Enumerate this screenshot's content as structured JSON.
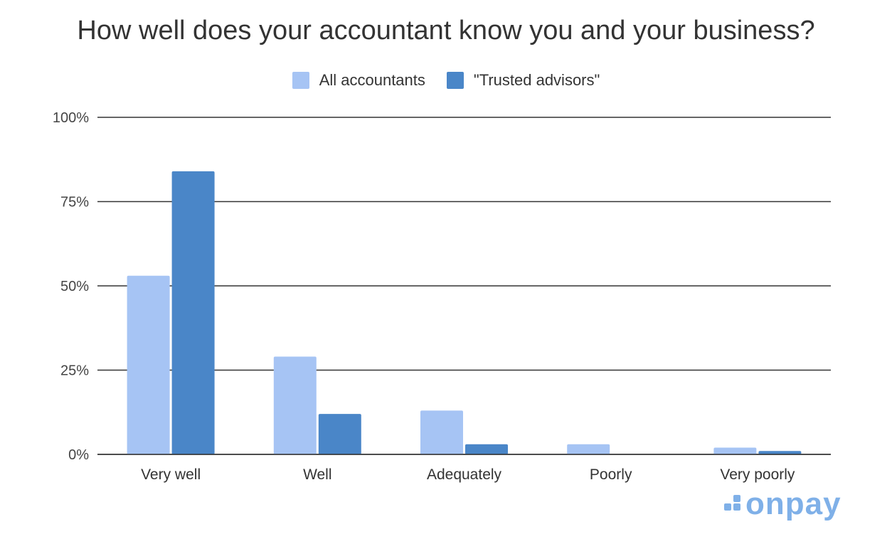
{
  "chart_data": {
    "type": "bar",
    "title": "How well does your accountant know you and your business?",
    "categories": [
      "Very well",
      "Well",
      "Adequately",
      "Poorly",
      "Very poorly"
    ],
    "series": [
      {
        "name": "All accountants",
        "color": "#a6c4f4",
        "values": [
          53,
          29,
          13,
          3,
          2
        ]
      },
      {
        "name": "\"Trusted advisors\"",
        "color": "#4a86c8",
        "values": [
          84,
          12,
          3,
          0,
          1
        ]
      }
    ],
    "ylim": [
      0,
      100
    ],
    "yticks": [
      "0%",
      "25%",
      "50%",
      "75%",
      "100%"
    ],
    "ytick_values": [
      0,
      25,
      50,
      75,
      100
    ],
    "grid": true,
    "legend": "top-center"
  },
  "brand": {
    "logo_text": "onpay",
    "color": "#7fb0e8"
  }
}
